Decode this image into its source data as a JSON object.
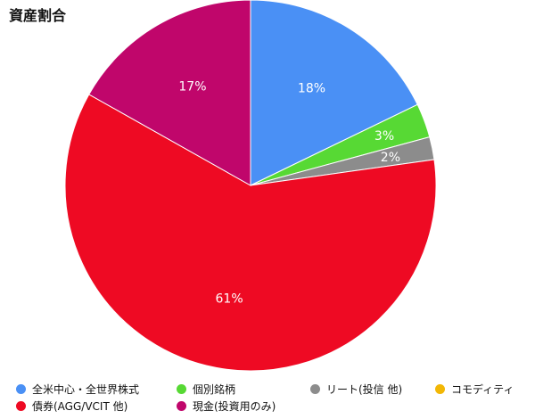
{
  "chart_data": {
    "type": "pie",
    "title": "資産割合",
    "slices": [
      {
        "name": "全米中心・全世界株式",
        "value": 18,
        "label": "18%",
        "color": "#4A90F5"
      },
      {
        "name": "個別銘柄",
        "value": 3,
        "label": "3%",
        "color": "#57D934"
      },
      {
        "name": "リート(投信 他)",
        "value": 2,
        "label": "2%",
        "color": "#8C8C8C"
      },
      {
        "name": "コモディティ",
        "value": 0,
        "label": "",
        "color": "#F2B705"
      },
      {
        "name": "債券(AGG/VCIT 他)",
        "value": 61,
        "label": "61%",
        "color": "#EE0A23"
      },
      {
        "name": "現金(投資用のみ)",
        "value": 17,
        "label": "17%",
        "color": "#C0066B"
      }
    ],
    "legend_position": "bottom"
  }
}
